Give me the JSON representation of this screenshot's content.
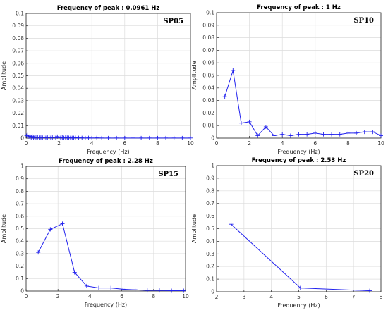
{
  "chart_data": [
    {
      "type": "line",
      "label": "SP05",
      "title": "Frequency of peak : 0.0961 Hz",
      "xlabel": "Frequency (Hz)",
      "ylabel": "Amplitude",
      "xlim": [
        0,
        10
      ],
      "ylim": [
        0,
        1
      ],
      "xticks": [
        "0",
        "2",
        "4",
        "6",
        "8",
        "10"
      ],
      "yticks": [
        "0",
        "0.01",
        "0.02",
        "0.03",
        "0.04",
        "0.05",
        "0.06",
        "0.07",
        "0.08",
        "0.09",
        "0.1"
      ],
      "grid": true,
      "color": "#2222ee",
      "marker": "+",
      "x": [
        0.03,
        0.1,
        0.17,
        0.24,
        0.31,
        0.38,
        0.45,
        0.52,
        0.6,
        0.7,
        0.8,
        0.9,
        1.0,
        1.1,
        1.2,
        1.3,
        1.4,
        1.5,
        1.6,
        1.7,
        1.8,
        1.9,
        2.0,
        2.1,
        2.2,
        2.3,
        2.4,
        2.5,
        2.6,
        2.7,
        2.8,
        2.9,
        3.0,
        3.2,
        3.4,
        3.6,
        3.8,
        4.0,
        4.3,
        4.6,
        5.0,
        5.5,
        6.0,
        6.5,
        7.0,
        7.5,
        8.0,
        8.5,
        9.0,
        9.5,
        10.0
      ],
      "y": [
        0.02,
        0.026,
        0.012,
        0.017,
        0.006,
        0.013,
        0.004,
        0.009,
        0.005,
        0.007,
        0.004,
        0.005,
        0.004,
        0.006,
        0.003,
        0.005,
        0.007,
        0.003,
        0.005,
        0.008,
        0.003,
        0.012,
        0.004,
        0.003,
        0.006,
        0.002,
        0.005,
        0.004,
        0.003,
        0.002,
        0.002,
        0.002,
        0.003,
        0.002,
        0.002,
        0.001,
        0.002,
        0.001,
        0.002,
        0.001,
        0.001,
        0.001,
        0.001,
        0.001,
        0.001,
        0.001,
        0.001,
        0.001,
        0.001,
        0.001,
        0.001
      ]
    },
    {
      "type": "line",
      "label": "SP10",
      "title": "Frequency of peak : 1 Hz",
      "xlabel": "Frequency (Hz)",
      "ylabel": "Amplitude",
      "xlim": [
        0,
        10
      ],
      "ylim": [
        0,
        0.1
      ],
      "xticks": [
        "0",
        "2",
        "4",
        "6",
        "8",
        "10"
      ],
      "yticks": [
        "0",
        "0.01",
        "0.02",
        "0.03",
        "0.04",
        "0.05",
        "0.06",
        "0.07",
        "0.08",
        "0.09",
        "0.1"
      ],
      "grid": true,
      "color": "#2222ee",
      "marker": "+",
      "x": [
        0.5,
        1.0,
        1.5,
        2.0,
        2.5,
        3.0,
        3.5,
        4.0,
        4.5,
        5.0,
        5.5,
        6.0,
        6.5,
        7.0,
        7.5,
        8.0,
        8.5,
        9.0,
        9.5,
        10.0
      ],
      "y": [
        0.033,
        0.054,
        0.012,
        0.013,
        0.002,
        0.009,
        0.002,
        0.003,
        0.002,
        0.003,
        0.003,
        0.004,
        0.003,
        0.003,
        0.003,
        0.004,
        0.004,
        0.005,
        0.005,
        0.002
      ]
    },
    {
      "type": "line",
      "label": "SP15",
      "title": "Frequency of peak : 2.28 Hz",
      "xlabel": "Frequency (Hz)",
      "ylabel": "Amplitude",
      "xlim": [
        0,
        10
      ],
      "ylim": [
        0,
        1
      ],
      "xticks": [
        "0",
        "2",
        "4",
        "6",
        "8",
        "10"
      ],
      "yticks": [
        "0",
        "0.1",
        "0.2",
        "0.3",
        "0.4",
        "0.5",
        "0.6",
        "0.7",
        "0.8",
        "0.9",
        "1"
      ],
      "grid": true,
      "color": "#2222ee",
      "marker": "+",
      "x": [
        0.76,
        1.52,
        2.28,
        3.04,
        3.8,
        4.56,
        5.32,
        6.08,
        6.84,
        7.6,
        8.36,
        9.12,
        9.88
      ],
      "y": [
        0.31,
        0.495,
        0.54,
        0.15,
        0.04,
        0.025,
        0.025,
        0.015,
        0.01,
        0.005,
        0.005,
        0.003,
        0.003
      ]
    },
    {
      "type": "line",
      "label": "SP20",
      "title": "Frequency of peak : 2.53 Hz",
      "xlabel": "Frequency (Hz)",
      "ylabel": "Amplitude",
      "xlim": [
        2,
        8
      ],
      "ylim": [
        0,
        1
      ],
      "xticks": [
        "2",
        "3",
        "4",
        "5",
        "6",
        "7",
        "8"
      ],
      "yticks": [
        "0",
        "0.1",
        "0.2",
        "0.3",
        "0.4",
        "0.5",
        "0.6",
        "0.7",
        "0.8",
        "0.9",
        "1"
      ],
      "grid": true,
      "color": "#2222ee",
      "marker": "+",
      "x": [
        2.53,
        5.06,
        7.59
      ],
      "y": [
        0.535,
        0.03,
        0.008
      ]
    }
  ]
}
